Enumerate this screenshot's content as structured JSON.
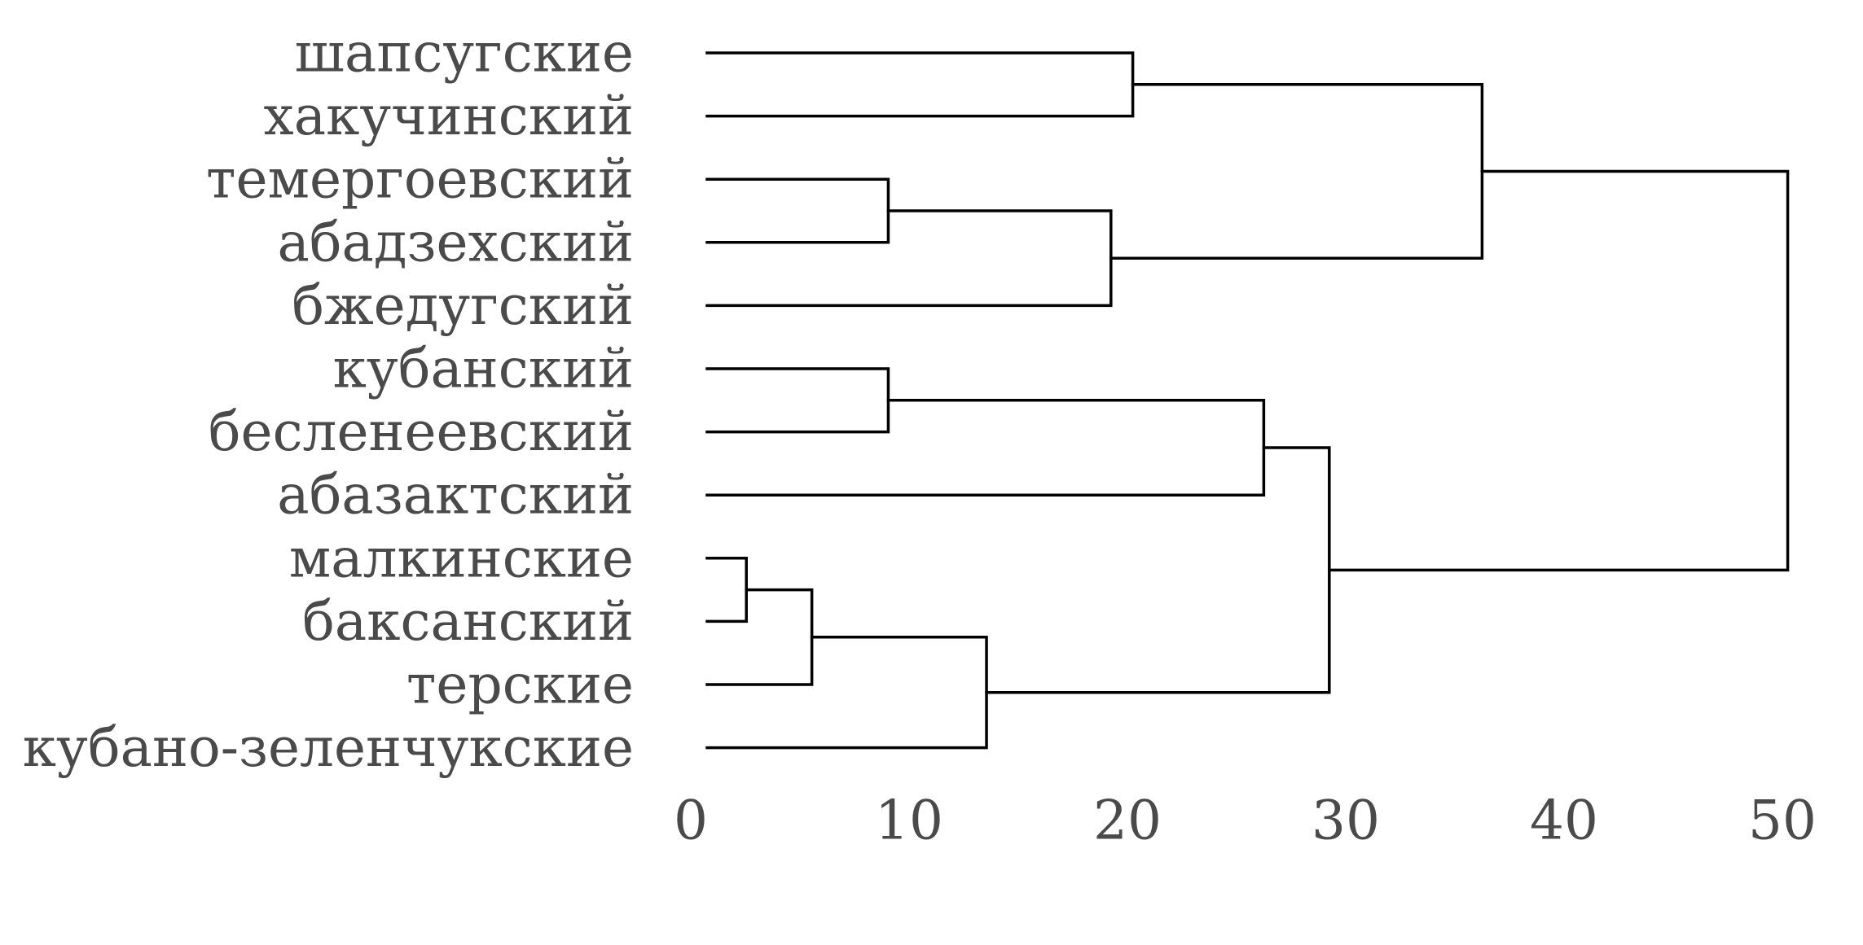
{
  "chart_data": {
    "type": "dendrogram",
    "orientation": "horizontal",
    "leaves": [
      "шапсугские",
      "хакучинский",
      "темергоевский",
      "абадзехский",
      "бжедугский",
      "кубанский",
      "бесленеевский",
      "абазактский",
      "малкинские",
      "баксанский",
      "терские",
      "кубано-зеленчукские"
    ],
    "merges": [
      {
        "left": "leaf:0",
        "right": "leaf:1",
        "height": 19.5
      },
      {
        "left": "leaf:2",
        "right": "leaf:3",
        "height": 8.3
      },
      {
        "left": "node:1",
        "right": "leaf:4",
        "height": 18.5
      },
      {
        "left": "node:0",
        "right": "node:2",
        "height": 35.5
      },
      {
        "left": "leaf:5",
        "right": "leaf:6",
        "height": 8.3
      },
      {
        "left": "node:4",
        "right": "leaf:7",
        "height": 25.5
      },
      {
        "left": "leaf:8",
        "right": "leaf:9",
        "height": 1.8
      },
      {
        "left": "node:6",
        "right": "leaf:10",
        "height": 4.8
      },
      {
        "left": "node:7",
        "right": "leaf:11",
        "height": 12.8
      },
      {
        "left": "node:5",
        "right": "node:8",
        "height": 28.5
      },
      {
        "left": "node:3",
        "right": "node:9",
        "height": 49.5
      }
    ],
    "x_ticks": [
      "0",
      "10",
      "20",
      "30",
      "40",
      "50"
    ],
    "xlim": [
      0,
      50
    ],
    "grid": false,
    "legend": false
  }
}
